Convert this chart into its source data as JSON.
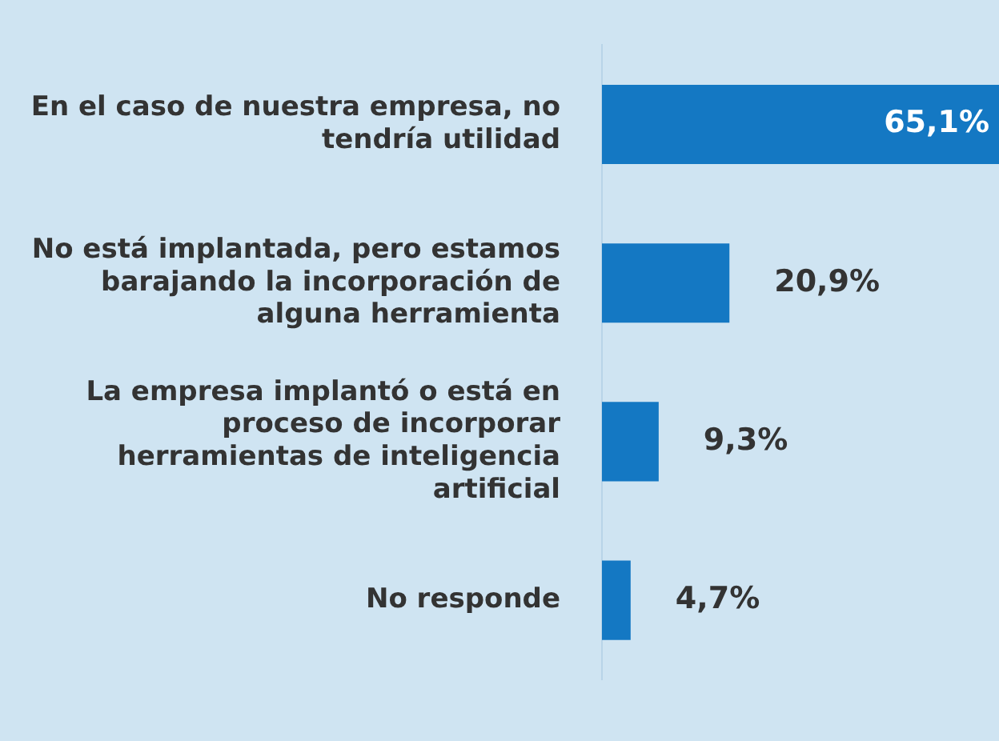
{
  "chart_data": {
    "type": "bar",
    "orientation": "horizontal",
    "categories": [
      "En el caso de nuestra empresa, no tendría utilidad",
      "No está implantada, pero estamos barajando la incorporación de alguna herramienta",
      "La empresa implantó o está en proceso de incorporar herramientas de inteligencia artificial",
      "No responde"
    ],
    "values": [
      65.1,
      20.9,
      9.3,
      4.7
    ],
    "value_labels": [
      "65,1%",
      "20,9%",
      "9,3%",
      "4,7%"
    ],
    "color": "#1478c3",
    "xlim": [
      0,
      65.1
    ],
    "tick_labels": "y"
  }
}
